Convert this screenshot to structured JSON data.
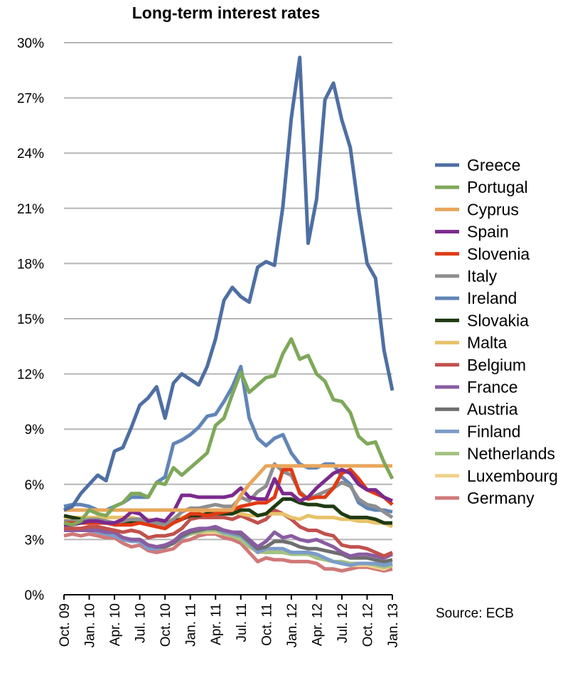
{
  "chart_data": {
    "type": "line",
    "title": "Long-term interest rates",
    "source": "Source: ECB",
    "ylim": [
      0,
      30
    ],
    "y_ticks": [
      0,
      3,
      6,
      9,
      12,
      15,
      18,
      21,
      24,
      27,
      30
    ],
    "y_tick_labels": [
      "0%",
      "3%",
      "6%",
      "9%",
      "12%",
      "15%",
      "18%",
      "21%",
      "24%",
      "27%",
      "30%"
    ],
    "x_tick_labels": [
      "Oct. 09",
      "Jan. 10",
      "Apr. 10",
      "Jul. 10",
      "Oct. 10",
      "Jan. 11",
      "Apr. 11",
      "Jul. 11",
      "Oct. 11",
      "Jan. 12",
      "Apr. 12",
      "Jul. 12",
      "Oct. 12",
      "Jan. 13"
    ],
    "x": [
      "Oct. 09",
      "Nov. 09",
      "Dec. 09",
      "Jan. 10",
      "Feb. 10",
      "Mar. 10",
      "Apr. 10",
      "May 10",
      "Jun. 10",
      "Jul. 10",
      "Aug. 10",
      "Sep. 10",
      "Oct. 10",
      "Nov. 10",
      "Dec. 10",
      "Jan. 11",
      "Feb. 11",
      "Mar. 11",
      "Apr. 11",
      "May 11",
      "Jun. 11",
      "Jul. 11",
      "Aug. 11",
      "Sep. 11",
      "Oct. 11",
      "Nov. 11",
      "Dec. 11",
      "Jan. 12",
      "Feb. 12",
      "Mar. 12",
      "Apr. 12",
      "May 12",
      "Jun. 12",
      "Jul. 12",
      "Aug. 12",
      "Sep. 12",
      "Oct. 12",
      "Nov. 12",
      "Dec. 12",
      "Jan. 13"
    ],
    "grid": true,
    "legend_position": "right",
    "series": [
      {
        "name": "Greece",
        "color": "#4e6fa3",
        "values": [
          4.6,
          4.8,
          5.5,
          6.0,
          6.5,
          6.2,
          7.8,
          8.0,
          9.1,
          10.3,
          10.7,
          11.3,
          9.6,
          11.5,
          12.0,
          11.7,
          11.4,
          12.4,
          13.9,
          16.0,
          16.7,
          16.2,
          15.9,
          17.8,
          18.1,
          17.9,
          21.1,
          25.9,
          29.2,
          19.1,
          21.5,
          26.9,
          27.8,
          25.8,
          24.3,
          20.9,
          18.0,
          17.2,
          13.3,
          11.1
        ]
      },
      {
        "name": "Portugal",
        "color": "#7fa85a",
        "values": [
          3.9,
          3.8,
          4.0,
          4.6,
          4.4,
          4.3,
          4.8,
          5.0,
          5.5,
          5.5,
          5.3,
          6.1,
          6.0,
          6.9,
          6.5,
          6.9,
          7.3,
          7.7,
          9.2,
          9.6,
          10.9,
          12.1,
          11.0,
          11.4,
          11.8,
          11.9,
          13.1,
          13.9,
          12.8,
          13.0,
          12.0,
          11.6,
          10.6,
          10.5,
          9.9,
          8.6,
          8.2,
          8.3,
          7.2,
          6.3
        ]
      },
      {
        "name": "Cyprus",
        "color": "#e8a65a",
        "values": [
          4.6,
          4.6,
          4.6,
          4.6,
          4.6,
          4.6,
          4.6,
          4.6,
          4.6,
          4.6,
          4.6,
          4.6,
          4.6,
          4.6,
          4.6,
          4.6,
          4.6,
          4.6,
          4.6,
          4.6,
          4.6,
          5.4,
          6.0,
          6.5,
          7.0,
          7.0,
          7.0,
          7.0,
          7.0,
          7.0,
          7.0,
          7.0,
          7.0,
          7.0,
          7.0,
          7.0,
          7.0,
          7.0,
          7.0,
          7.0
        ]
      },
      {
        "name": "Spain",
        "color": "#7b2a8e",
        "values": [
          3.8,
          3.8,
          3.9,
          4.0,
          4.0,
          3.9,
          3.9,
          4.1,
          4.5,
          4.4,
          4.0,
          4.1,
          4.0,
          4.5,
          5.4,
          5.4,
          5.3,
          5.3,
          5.3,
          5.3,
          5.4,
          5.8,
          5.3,
          5.2,
          5.2,
          6.3,
          5.5,
          5.5,
          5.1,
          5.3,
          5.8,
          6.2,
          6.6,
          6.8,
          6.6,
          6.0,
          5.7,
          5.7,
          5.3,
          5.1
        ]
      },
      {
        "name": "Slovenia",
        "color": "#e03a14",
        "values": [
          3.9,
          3.9,
          3.9,
          3.9,
          3.9,
          3.9,
          3.8,
          3.8,
          3.8,
          3.9,
          3.8,
          3.7,
          3.6,
          3.9,
          4.1,
          4.4,
          4.4,
          4.3,
          4.4,
          4.5,
          4.6,
          4.8,
          4.9,
          5.0,
          5.0,
          5.3,
          6.8,
          6.8,
          5.5,
          5.2,
          5.3,
          5.3,
          5.8,
          6.6,
          6.8,
          6.3,
          5.7,
          5.5,
          5.3,
          4.9
        ]
      },
      {
        "name": "Italy",
        "color": "#8e8e8e",
        "values": [
          4.0,
          4.0,
          4.0,
          4.1,
          4.1,
          4.0,
          3.9,
          4.0,
          4.1,
          4.1,
          3.9,
          3.9,
          3.8,
          4.1,
          4.5,
          4.7,
          4.7,
          4.8,
          4.9,
          4.8,
          4.8,
          5.3,
          5.1,
          5.6,
          5.9,
          7.1,
          6.7,
          6.5,
          5.6,
          5.2,
          5.4,
          5.6,
          5.8,
          6.1,
          5.9,
          5.2,
          4.9,
          4.8,
          4.5,
          4.2
        ]
      },
      {
        "name": "Ireland",
        "color": "#6185b7",
        "values": [
          4.8,
          4.9,
          4.9,
          4.8,
          4.6,
          4.6,
          4.8,
          5.0,
          5.3,
          5.3,
          5.3,
          6.1,
          6.4,
          8.2,
          8.4,
          8.7,
          9.1,
          9.7,
          9.8,
          10.5,
          11.3,
          12.4,
          9.6,
          8.5,
          8.1,
          8.5,
          8.7,
          7.7,
          7.1,
          6.9,
          6.9,
          7.1,
          7.1,
          6.4,
          6.0,
          5.0,
          4.7,
          4.6,
          4.6,
          4.5
        ]
      },
      {
        "name": "Slovakia",
        "color": "#1f3b12",
        "values": [
          4.3,
          4.2,
          4.1,
          4.0,
          4.0,
          3.9,
          3.9,
          3.9,
          3.9,
          3.9,
          3.9,
          3.9,
          3.9,
          4.0,
          4.1,
          4.3,
          4.3,
          4.4,
          4.4,
          4.4,
          4.4,
          4.6,
          4.6,
          4.3,
          4.4,
          4.8,
          5.2,
          5.2,
          5.0,
          4.9,
          4.9,
          4.8,
          4.8,
          4.4,
          4.2,
          4.2,
          4.2,
          4.1,
          3.9,
          3.9
        ]
      },
      {
        "name": "Malta",
        "color": "#e8c26a",
        "values": [
          4.2,
          4.2,
          4.2,
          4.2,
          4.2,
          4.2,
          4.2,
          4.2,
          4.2,
          4.1,
          4.1,
          4.0,
          4.0,
          4.1,
          4.2,
          4.3,
          4.4,
          4.5,
          4.5,
          4.5,
          4.5,
          4.4,
          4.3,
          4.3,
          4.4,
          4.4,
          4.4,
          4.2,
          4.1,
          4.3,
          4.2,
          4.2,
          4.2,
          4.1,
          4.1,
          4.0,
          4.0,
          3.9,
          3.9,
          3.7
        ]
      },
      {
        "name": "Belgium",
        "color": "#c1514e",
        "values": [
          3.6,
          3.6,
          3.6,
          3.7,
          3.7,
          3.6,
          3.5,
          3.4,
          3.5,
          3.4,
          3.1,
          3.2,
          3.2,
          3.3,
          3.6,
          4.1,
          4.2,
          4.2,
          4.2,
          4.2,
          4.1,
          4.3,
          4.1,
          3.9,
          4.1,
          4.6,
          4.4,
          4.1,
          3.7,
          3.5,
          3.5,
          3.3,
          3.2,
          2.7,
          2.6,
          2.6,
          2.5,
          2.3,
          2.1,
          2.3
        ]
      },
      {
        "name": "France",
        "color": "#8a5ca1",
        "values": [
          3.5,
          3.5,
          3.5,
          3.5,
          3.5,
          3.4,
          3.4,
          3.1,
          3.0,
          3.0,
          2.7,
          2.6,
          2.7,
          2.9,
          3.3,
          3.5,
          3.6,
          3.6,
          3.7,
          3.5,
          3.4,
          3.4,
          3.0,
          2.6,
          2.9,
          3.4,
          3.1,
          3.2,
          3.0,
          2.9,
          3.0,
          2.8,
          2.6,
          2.3,
          2.1,
          2.2,
          2.2,
          2.1,
          2.0,
          2.2
        ]
      },
      {
        "name": "Austria",
        "color": "#6e6e6e",
        "values": [
          3.6,
          3.6,
          3.6,
          3.6,
          3.6,
          3.5,
          3.4,
          3.1,
          3.0,
          3.0,
          2.7,
          2.6,
          2.6,
          2.8,
          3.2,
          3.4,
          3.5,
          3.6,
          3.6,
          3.5,
          3.4,
          3.3,
          2.9,
          2.5,
          2.6,
          2.9,
          2.9,
          2.8,
          2.6,
          2.5,
          2.5,
          2.4,
          2.3,
          2.2,
          2.0,
          2.0,
          2.0,
          1.9,
          1.8,
          1.9
        ]
      },
      {
        "name": "Finland",
        "color": "#7b9cc9",
        "values": [
          3.6,
          3.6,
          3.5,
          3.5,
          3.4,
          3.3,
          3.2,
          3.0,
          2.9,
          2.9,
          2.5,
          2.5,
          2.6,
          2.8,
          3.1,
          3.4,
          3.5,
          3.6,
          3.6,
          3.4,
          3.3,
          3.2,
          2.8,
          2.3,
          2.5,
          2.5,
          2.5,
          2.3,
          2.3,
          2.3,
          2.2,
          2.0,
          1.8,
          1.7,
          1.6,
          1.7,
          1.7,
          1.7,
          1.6,
          1.7
        ]
      },
      {
        "name": "Netherlands",
        "color": "#a4c382",
        "values": [
          3.6,
          3.6,
          3.5,
          3.5,
          3.4,
          3.3,
          3.3,
          3.1,
          2.9,
          2.9,
          2.6,
          2.5,
          2.6,
          2.8,
          3.1,
          3.3,
          3.4,
          3.5,
          3.5,
          3.3,
          3.2,
          3.0,
          2.6,
          2.4,
          2.3,
          2.3,
          2.3,
          2.2,
          2.2,
          2.2,
          2.0,
          1.9,
          1.8,
          1.8,
          1.7,
          1.7,
          1.7,
          1.6,
          1.5,
          1.6
        ]
      },
      {
        "name": "Luxembourg",
        "color": "#f0d18c",
        "values": [
          3.5,
          3.5,
          3.5,
          3.5,
          3.4,
          3.4,
          3.3,
          3.1,
          3.0,
          3.0,
          2.7,
          2.6,
          2.7,
          2.8,
          3.1,
          3.3,
          3.4,
          3.4,
          3.4,
          3.3,
          3.2,
          3.0,
          2.6,
          2.3,
          2.3,
          2.4,
          2.3,
          2.3,
          2.2,
          2.2,
          2.1,
          1.9,
          1.8,
          1.7,
          1.6,
          1.6,
          1.6,
          1.5,
          1.4,
          1.6
        ]
      },
      {
        "name": "Germany",
        "color": "#d17878",
        "values": [
          3.2,
          3.3,
          3.2,
          3.3,
          3.2,
          3.1,
          3.1,
          2.8,
          2.6,
          2.7,
          2.4,
          2.3,
          2.4,
          2.5,
          2.9,
          3.0,
          3.2,
          3.3,
          3.3,
          3.1,
          3.0,
          2.8,
          2.3,
          1.8,
          2.0,
          1.9,
          1.9,
          1.8,
          1.8,
          1.8,
          1.7,
          1.4,
          1.4,
          1.3,
          1.4,
          1.5,
          1.5,
          1.4,
          1.3,
          1.4
        ]
      }
    ]
  }
}
